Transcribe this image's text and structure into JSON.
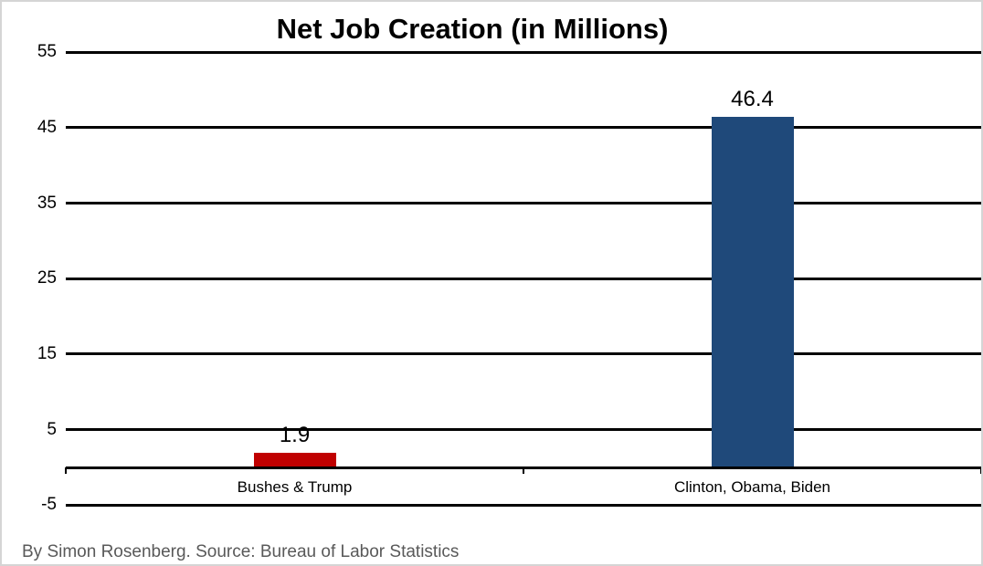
{
  "chart_data": {
    "type": "bar",
    "title": "Net Job Creation (in Millions)",
    "categories": [
      "Bushes & Trump",
      "Clinton, Obama, Biden"
    ],
    "values": [
      1.9,
      46.4
    ],
    "value_labels": [
      "1.9",
      "46.4"
    ],
    "bar_colors": [
      "#C00000",
      "#1F497A"
    ],
    "yticks": [
      55,
      45,
      35,
      25,
      15,
      5,
      -5
    ],
    "ylim": [
      -5,
      55
    ],
    "baseline": 0,
    "xlabel": "",
    "ylabel": "",
    "grid": true,
    "gridline_color": "#000000",
    "legend_position": "none"
  },
  "footer": {
    "source_note": "By Simon Rosenberg. Source: Bureau of Labor Statistics",
    "color": "#595959"
  },
  "frame": {
    "background": "#FFFFFF",
    "border_color": "#D5D5D5"
  }
}
